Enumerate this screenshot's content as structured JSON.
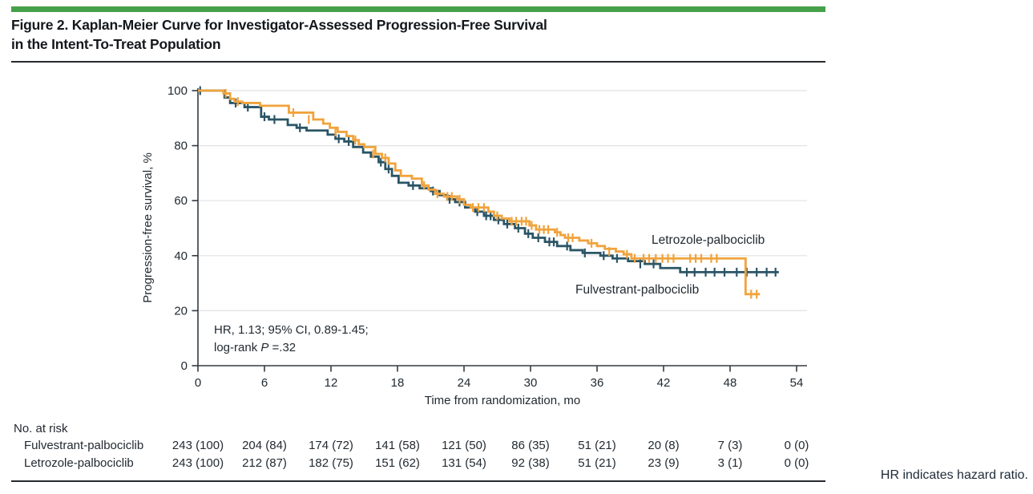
{
  "figure": {
    "title_line1": "Figure 2. Kaplan-Meier Curve for Investigator-Assessed Progression-Free Survival",
    "title_line2": "in the Intent-To-Treat Population",
    "footnote": "HR indicates hazard ratio."
  },
  "colors": {
    "accent_bar": "#46A04A",
    "letrozole": "#F0A33C",
    "fulvestrant": "#2A5566",
    "text": "#222A31",
    "grid": "#E2E2E2",
    "axis": "#333B42"
  },
  "chart_data": {
    "type": "line",
    "subtype": "kaplan-meier-step",
    "title": "",
    "xlabel": "Time from randomization, mo",
    "ylabel": "Progression-free survival, %",
    "xlim": [
      0,
      54
    ],
    "ylim": [
      0,
      100
    ],
    "x_ticks": [
      0,
      6,
      12,
      18,
      24,
      30,
      36,
      42,
      48,
      54
    ],
    "y_ticks": [
      0,
      20,
      40,
      60,
      80,
      100
    ],
    "grid": "horizontal-at-y-ticks",
    "legend_position": "labels-on-plot",
    "annotation": {
      "line1": "HR, 1.13; 95% CI, 0.89-1.45;",
      "line2_prefix": "log-rank ",
      "line2_italic": "P",
      "line2_suffix": " =.32"
    },
    "series": [
      {
        "name": "Letrozole-palbociclib",
        "color": "#F0A33C",
        "end": 50.7,
        "steps": [
          [
            0,
            100
          ],
          [
            2.3,
            99
          ],
          [
            2.9,
            97
          ],
          [
            3.3,
            96
          ],
          [
            4.0,
            95.5
          ],
          [
            5.6,
            94.5
          ],
          [
            8.2,
            92
          ],
          [
            10.4,
            89.5
          ],
          [
            11.3,
            88
          ],
          [
            11.9,
            86.5
          ],
          [
            12.6,
            85
          ],
          [
            13.4,
            83.5
          ],
          [
            14.0,
            82
          ],
          [
            14.5,
            80.5
          ],
          [
            15.0,
            79.5
          ],
          [
            16.0,
            77
          ],
          [
            16.6,
            75.5
          ],
          [
            17.2,
            73.5
          ],
          [
            17.8,
            71
          ],
          [
            18.3,
            69
          ],
          [
            19.3,
            68
          ],
          [
            20.2,
            65.5
          ],
          [
            20.8,
            64
          ],
          [
            21.4,
            62.5
          ],
          [
            22.2,
            61.5
          ],
          [
            23.4,
            60.5
          ],
          [
            24.0,
            58.5
          ],
          [
            24.6,
            57.5
          ],
          [
            26.2,
            56
          ],
          [
            26.7,
            54.5
          ],
          [
            27.4,
            53.5
          ],
          [
            28.1,
            52.5
          ],
          [
            29.9,
            51
          ],
          [
            30.5,
            49.5
          ],
          [
            32.2,
            48.5
          ],
          [
            32.7,
            47.5
          ],
          [
            33.1,
            46.5
          ],
          [
            34.4,
            45.5
          ],
          [
            35.2,
            44.5
          ],
          [
            36.0,
            43.5
          ],
          [
            36.7,
            42.5
          ],
          [
            37.7,
            41.5
          ],
          [
            38.4,
            40.5
          ],
          [
            39.1,
            39
          ],
          [
            49.4,
            26
          ]
        ],
        "censors": [
          [
            2.5,
            99
          ],
          [
            3.6,
            96
          ],
          [
            8.6,
            92
          ],
          [
            10.0,
            89.5
          ],
          [
            12.4,
            85
          ],
          [
            14.2,
            82
          ],
          [
            15.8,
            77
          ],
          [
            16.9,
            75.5
          ],
          [
            20.4,
            65.5
          ],
          [
            21.6,
            62.5
          ],
          [
            22.5,
            61.5
          ],
          [
            22.9,
            61.5
          ],
          [
            23.6,
            60.5
          ],
          [
            24.8,
            57.5
          ],
          [
            25.3,
            57.5
          ],
          [
            25.8,
            57.5
          ],
          [
            27.0,
            54.5
          ],
          [
            28.3,
            52.5
          ],
          [
            28.7,
            52.5
          ],
          [
            29.2,
            52.5
          ],
          [
            29.6,
            52.5
          ],
          [
            30.1,
            51
          ],
          [
            30.8,
            49.5
          ],
          [
            31.2,
            49.5
          ],
          [
            31.6,
            49.5
          ],
          [
            32.4,
            48.5
          ],
          [
            33.4,
            46.5
          ],
          [
            33.8,
            46.5
          ],
          [
            35.5,
            44.5
          ],
          [
            37.1,
            41.5
          ],
          [
            38.7,
            40.5
          ],
          [
            39.4,
            39
          ],
          [
            40.2,
            39
          ],
          [
            40.7,
            39
          ],
          [
            41.3,
            39
          ],
          [
            41.9,
            39
          ],
          [
            42.4,
            39
          ],
          [
            42.9,
            39
          ],
          [
            44.4,
            39
          ],
          [
            44.9,
            39
          ],
          [
            45.4,
            39
          ],
          [
            46.3,
            39
          ],
          [
            46.8,
            39
          ],
          [
            49.9,
            26
          ],
          [
            50.4,
            26
          ]
        ]
      },
      {
        "name": "Fulvestrant-palbociclib",
        "color": "#2A5566",
        "end": 52.4,
        "steps": [
          [
            0,
            100
          ],
          [
            2.4,
            97.5
          ],
          [
            2.9,
            95.5
          ],
          [
            4.2,
            94
          ],
          [
            5.7,
            90.5
          ],
          [
            6.4,
            89.5
          ],
          [
            8.1,
            87.5
          ],
          [
            8.9,
            86.5
          ],
          [
            9.8,
            85.5
          ],
          [
            11.7,
            84
          ],
          [
            12.4,
            82.5
          ],
          [
            13.2,
            81.5
          ],
          [
            14.0,
            79.5
          ],
          [
            14.9,
            77.5
          ],
          [
            15.6,
            76
          ],
          [
            16.3,
            74
          ],
          [
            16.9,
            71.5
          ],
          [
            17.5,
            69
          ],
          [
            18.1,
            66.5
          ],
          [
            19.0,
            65.5
          ],
          [
            20.0,
            64.5
          ],
          [
            21.0,
            63.5
          ],
          [
            21.8,
            62
          ],
          [
            22.5,
            60.5
          ],
          [
            23.2,
            59.5
          ],
          [
            24.1,
            57.5
          ],
          [
            25.0,
            56
          ],
          [
            25.8,
            54.5
          ],
          [
            26.7,
            53
          ],
          [
            27.6,
            51.5
          ],
          [
            28.6,
            50
          ],
          [
            29.5,
            48
          ],
          [
            30.2,
            46.5
          ],
          [
            31.3,
            45
          ],
          [
            32.4,
            43.5
          ],
          [
            33.6,
            42
          ],
          [
            34.7,
            41
          ],
          [
            36.3,
            40
          ],
          [
            37.4,
            39
          ],
          [
            38.8,
            38
          ],
          [
            40.3,
            37
          ],
          [
            41.7,
            35.5
          ],
          [
            43.5,
            34
          ]
        ],
        "censors": [
          [
            0.2,
            100
          ],
          [
            3.4,
            95.5
          ],
          [
            4.5,
            94
          ],
          [
            6.0,
            90.5
          ],
          [
            6.9,
            89.5
          ],
          [
            9.2,
            86.5
          ],
          [
            12.7,
            82.5
          ],
          [
            13.6,
            81.5
          ],
          [
            16.5,
            74
          ],
          [
            17.2,
            71.5
          ],
          [
            19.4,
            65.5
          ],
          [
            21.2,
            63.5
          ],
          [
            22.7,
            60.5
          ],
          [
            23.6,
            59.5
          ],
          [
            25.2,
            56
          ],
          [
            26.0,
            54.5
          ],
          [
            26.4,
            54.5
          ],
          [
            27.1,
            53
          ],
          [
            27.9,
            51.5
          ],
          [
            28.9,
            50
          ],
          [
            29.8,
            48
          ],
          [
            30.7,
            46.5
          ],
          [
            31.7,
            45
          ],
          [
            32.1,
            45
          ],
          [
            33.3,
            43.5
          ],
          [
            34.9,
            41
          ],
          [
            36.6,
            40
          ],
          [
            37.8,
            39
          ],
          [
            39.9,
            37
          ],
          [
            41.1,
            37
          ],
          [
            44.1,
            34
          ],
          [
            44.8,
            34
          ],
          [
            45.8,
            34
          ],
          [
            46.6,
            34
          ],
          [
            47.5,
            34
          ],
          [
            48.6,
            34
          ],
          [
            49.5,
            34
          ],
          [
            50.4,
            34
          ],
          [
            51.3,
            34
          ],
          [
            52.1,
            34
          ]
        ]
      }
    ],
    "risk_table": {
      "heading": "No. at risk",
      "rows": [
        {
          "label": "Fulvestrant-palbociclib",
          "values": [
            "243 (100)",
            "204 (84)",
            "174 (72)",
            "141 (58)",
            "121 (50)",
            "86 (35)",
            "51 (21)",
            "20 (8)",
            "7 (3)",
            "0 (0)"
          ]
        },
        {
          "label": "Letrozole-palbociclib",
          "values": [
            "243 (100)",
            "212 (87)",
            "182 (75)",
            "151 (62)",
            "131 (54)",
            "92 (38)",
            "51 (21)",
            "23 (9)",
            "3 (1)",
            "0 (0)"
          ]
        }
      ]
    }
  }
}
